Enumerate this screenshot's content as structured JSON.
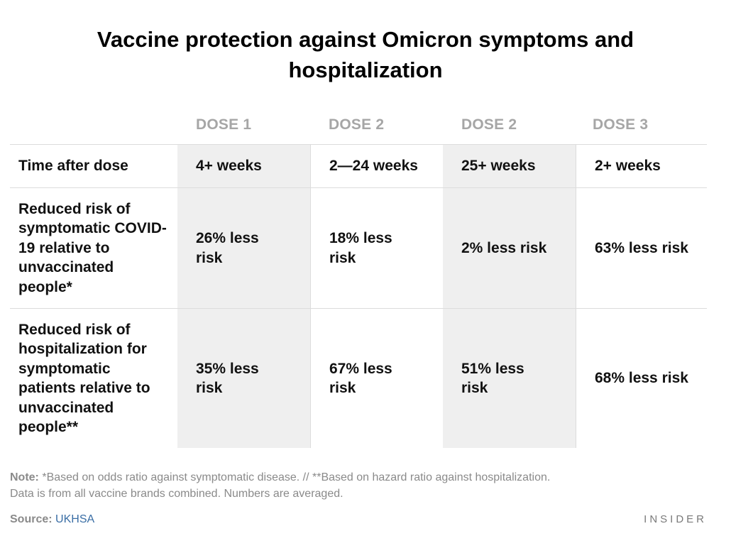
{
  "title": "Vaccine protection against Omicron symptoms and hospitalization",
  "chart_data": {
    "type": "table",
    "columns": [
      "",
      "DOSE 1",
      "DOSE 2",
      "DOSE 2",
      "DOSE 3"
    ],
    "rows": [
      {
        "label": "Time after dose",
        "values": [
          "4+ weeks",
          "2—24 weeks",
          "25+ weeks",
          "2+ weeks"
        ]
      },
      {
        "label": "Reduced risk of symptomatic COVID-19 relative to unvaccinated people*",
        "values": [
          "26% less risk",
          "18% less risk",
          "2% less risk",
          "63% less risk"
        ]
      },
      {
        "label": "Reduced risk of hospitalization for symptomatic patients relative to unvaccinated people**",
        "values": [
          "35% less risk",
          "67% less risk",
          "51% less risk",
          "68% less risk"
        ]
      }
    ],
    "shaded_columns": [
      1,
      3
    ],
    "shade_color": "#efefef"
  },
  "note": {
    "label": "Note:",
    "line1": "*Based on odds ratio against symptomatic disease. // **Based on hazard ratio against hospitalization.",
    "line2": "Data is from all vaccine brands combined. Numbers are averaged."
  },
  "source": {
    "label": "Source:",
    "value": "UKHSA"
  },
  "brand": "INSIDER",
  "colors": {
    "header_text": "#a6a6a6",
    "note_text": "#8a8a8a",
    "link": "#3a6ea5"
  }
}
